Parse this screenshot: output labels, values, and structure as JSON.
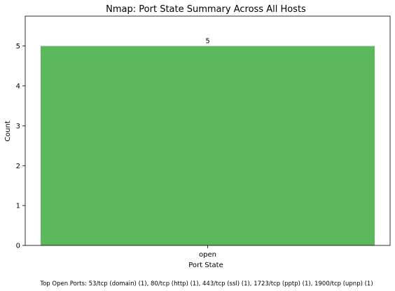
{
  "chart_data": {
    "type": "bar",
    "title": "Nmap: Port State Summary Across All Hosts",
    "xlabel": "Port State",
    "ylabel": "Count",
    "categories": [
      "open"
    ],
    "values": [
      5
    ],
    "data_labels": [
      "5"
    ],
    "ylim": [
      0,
      5.75
    ],
    "yticks": [
      0,
      1,
      2,
      3,
      4,
      5
    ],
    "grid": false,
    "bar_color": "#5cb85c",
    "footnote": "Top Open Ports: 53/tcp (domain) (1), 80/tcp (http) (1), 443/tcp (ssl) (1), 1723/tcp (pptp) (1), 1900/tcp (upnp) (1)"
  }
}
